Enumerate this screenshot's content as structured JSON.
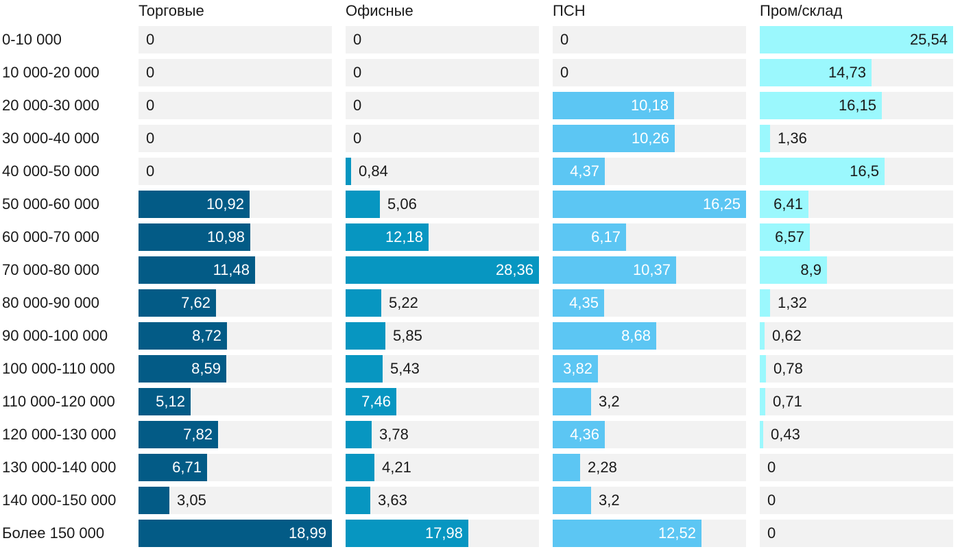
{
  "chart_data": {
    "type": "bar",
    "orientation": "horizontal",
    "layout": "small-multiples",
    "categories": [
      "0-10 000",
      "10 000-20 000",
      "20 000-30 000",
      "30 000-40 000",
      "40 000-50 000",
      "50 000-60 000",
      "60 000-70 000",
      "70 000-80 000",
      "80 000-90 000",
      "90 000-100 000",
      "100 000-110 000",
      "110 000-120 000",
      "120 000-130 000",
      "130 000-140 000",
      "140 000-150 000",
      "Более 150 000"
    ],
    "series": [
      {
        "name": "Торговые",
        "color": "#035b86",
        "values": [
          0,
          0,
          0,
          0,
          0,
          10.92,
          10.98,
          11.48,
          7.62,
          8.72,
          8.59,
          5.12,
          7.82,
          6.71,
          3.05,
          18.99
        ],
        "labels": [
          "0",
          "0",
          "0",
          "0",
          "0",
          "10,92",
          "10,98",
          "11,48",
          "7,62",
          "8,72",
          "8,59",
          "5,12",
          "7,82",
          "6,71",
          "3,05",
          "18,99"
        ]
      },
      {
        "name": "Офисные",
        "color": "#0796c1",
        "values": [
          0,
          0,
          0,
          0,
          0.84,
          5.06,
          12.18,
          28.36,
          5.22,
          5.85,
          5.43,
          7.46,
          3.78,
          4.21,
          3.63,
          17.98
        ],
        "labels": [
          "0",
          "0",
          "0",
          "0",
          "0,84",
          "5,06",
          "12,18",
          "28,36",
          "5,22",
          "5,85",
          "5,43",
          "7,46",
          "3,78",
          "4,21",
          "3,63",
          "17,98"
        ]
      },
      {
        "name": "ПСН",
        "color": "#5cc6f3",
        "values": [
          0,
          0,
          10.18,
          10.26,
          4.37,
          16.25,
          6.17,
          10.37,
          4.35,
          8.68,
          3.82,
          3.2,
          4.36,
          2.28,
          3.2,
          12.52
        ],
        "labels": [
          "0",
          "0",
          "10,18",
          "10,26",
          "4,37",
          "16,25",
          "6,17",
          "10,37",
          "4,35",
          "8,68",
          "3,82",
          "3,2",
          "4,36",
          "2,28",
          "3,2",
          "12,52"
        ]
      },
      {
        "name": "Пром/склад",
        "color": "#9bf8fd",
        "values": [
          25.54,
          14.73,
          16.15,
          1.36,
          16.5,
          6.41,
          6.57,
          8.9,
          1.32,
          0.62,
          0.78,
          0.71,
          0.43,
          0,
          0,
          0
        ],
        "labels": [
          "25,54",
          "14,73",
          "16,15",
          "1,36",
          "16,5",
          "6,41",
          "6,57",
          "8,9",
          "1,32",
          "0,62",
          "0,78",
          "0,71",
          "0,43",
          "0",
          "0",
          "0"
        ]
      }
    ],
    "label_color_dark": "#1a1a1a",
    "label_color_light": "#ffffff",
    "track_color": "#f2f2f2"
  }
}
